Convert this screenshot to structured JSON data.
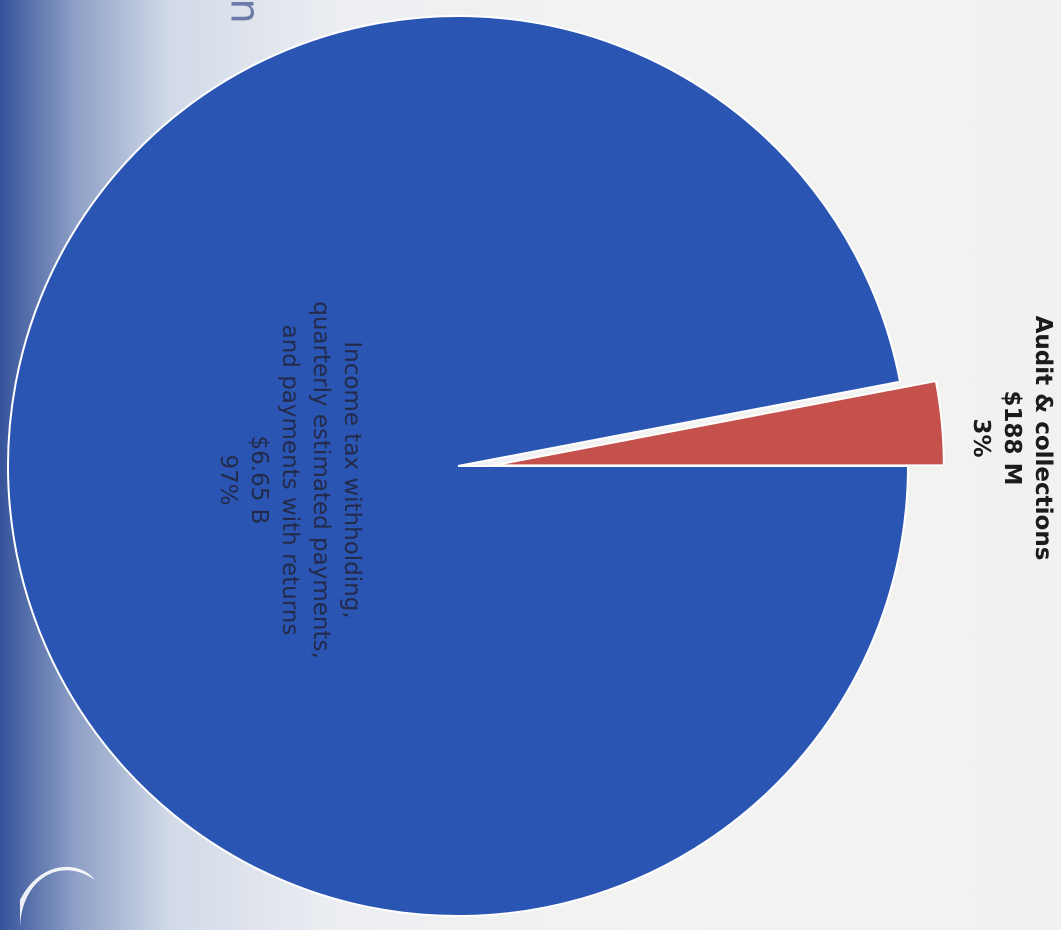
{
  "chart_data": {
    "type": "pie",
    "orientation": "rotated 90 degrees clockwise",
    "slices": [
      {
        "name_lines": [
          "Income tax withholding,",
          "quarterly estimated payments,",
          "and payments with returns"
        ],
        "value_label": "$6.65 B",
        "percent_label": "97%",
        "value": 6650,
        "percent": 97,
        "color": "#2a55b3"
      },
      {
        "name_lines": [
          "Audit & collections"
        ],
        "value_label": "$188 M",
        "percent_label": "3%",
        "value": 188,
        "percent": 3,
        "color": "#c4514c",
        "exploded": true
      }
    ],
    "value_units": "millions of dollars"
  },
  "page": {
    "corner_glyph": "n"
  }
}
